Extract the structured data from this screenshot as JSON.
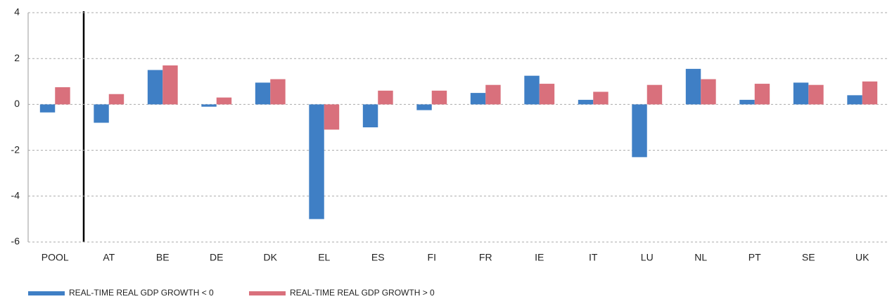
{
  "chart_data": {
    "type": "bar",
    "categories": [
      "POOL",
      "AT",
      "BE",
      "DE",
      "DK",
      "EL",
      "ES",
      "FI",
      "FR",
      "IE",
      "IT",
      "LU",
      "NL",
      "PT",
      "SE",
      "UK"
    ],
    "series": [
      {
        "name": "REAL-TIME REAL GDP GROWTH < 0",
        "color": "#3f7fc5",
        "values": [
          -0.35,
          -0.8,
          1.5,
          -0.1,
          0.95,
          -5.0,
          -1.0,
          -0.25,
          0.5,
          1.25,
          0.2,
          -2.3,
          1.55,
          0.2,
          0.95,
          0.4
        ]
      },
      {
        "name": "REAL-TIME REAL GDP GROWTH > 0",
        "color": "#d9707c",
        "values": [
          0.75,
          0.45,
          1.7,
          0.3,
          1.1,
          -1.1,
          0.6,
          0.6,
          0.85,
          0.9,
          0.55,
          0.85,
          1.1,
          0.9,
          0.85,
          1.0
        ]
      }
    ],
    "ylim": [
      -6,
      4
    ],
    "yticks": [
      -6,
      -4,
      -2,
      0,
      2,
      4
    ],
    "grid": true
  }
}
